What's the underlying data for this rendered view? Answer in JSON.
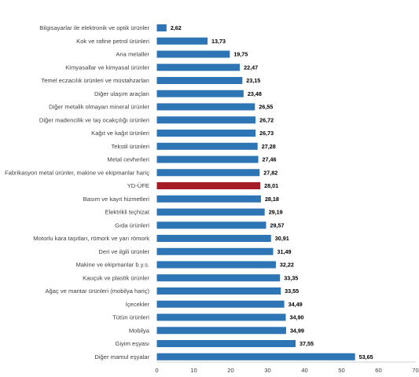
{
  "chart_data": {
    "type": "bar",
    "orientation": "horizontal",
    "categories": [
      "Bilgisayarlar ile elektronik ve optik ürünler",
      "Kok ve rafine petrol ürünleri",
      "Ana metaller",
      "Kimyasallar ve kimyasal ürünler",
      "Temel eczacılık ürünleri ve müstahzarları",
      "Diğer ulaşım araçları",
      "Diğer metalik olmayan mineral ürünler",
      "Diğer madencilik ve taş ocakçılığı ürünleri",
      "Kağıt ve kağıt ürünleri",
      "Tekstil ürünleri",
      "Metal cevherleri",
      "Fabrikasyon metal ürünler, makine ve ekipmanlar hariç",
      "YD-ÜFE",
      "Basım ve kayıt hizmetleri",
      "Elektrikli teçhizat",
      "Gıda ürünleri",
      "Motorlu kara taşıtları, römork ve yarı römork",
      "Deri ve ilgili ürünler",
      "Makine ve ekipmanlar b.y.s.",
      "Kauçuk ve plastik ürünler",
      "Ağaç ve mantar ürünleri (mobilya hariç)",
      "İçecekler",
      "Tütün ürünleri",
      "Mobilya",
      "Giyim eşyası",
      "Diğer mamul eşyalar"
    ],
    "values": [
      2.62,
      13.73,
      19.75,
      22.47,
      23.15,
      23.48,
      26.55,
      26.72,
      26.73,
      27.28,
      27.46,
      27.82,
      28.01,
      28.18,
      29.19,
      29.57,
      30.91,
      31.49,
      32.22,
      33.35,
      33.55,
      34.49,
      34.9,
      34.99,
      37.55,
      53.65
    ],
    "value_labels": [
      "2,62",
      "13,73",
      "19,75",
      "22,47",
      "23,15",
      "23,48",
      "26,55",
      "26,72",
      "26,73",
      "27,28",
      "27,46",
      "27,82",
      "28,01",
      "28,18",
      "29,19",
      "29,57",
      "30,91",
      "31,49",
      "32,22",
      "33,35",
      "33,55",
      "34,49",
      "34,90",
      "34,99",
      "37,55",
      "53,65"
    ],
    "highlight_category": "YD-ÜFE",
    "xlim": [
      0,
      70
    ],
    "xticks": [
      0,
      10,
      20,
      30,
      40,
      50,
      60,
      70
    ],
    "grid": false,
    "title": "",
    "xlabel": "",
    "ylabel": ""
  },
  "colors": {
    "bar": "#2E75B6",
    "highlight": "#A61C24",
    "axis": "#bfbfbf"
  }
}
